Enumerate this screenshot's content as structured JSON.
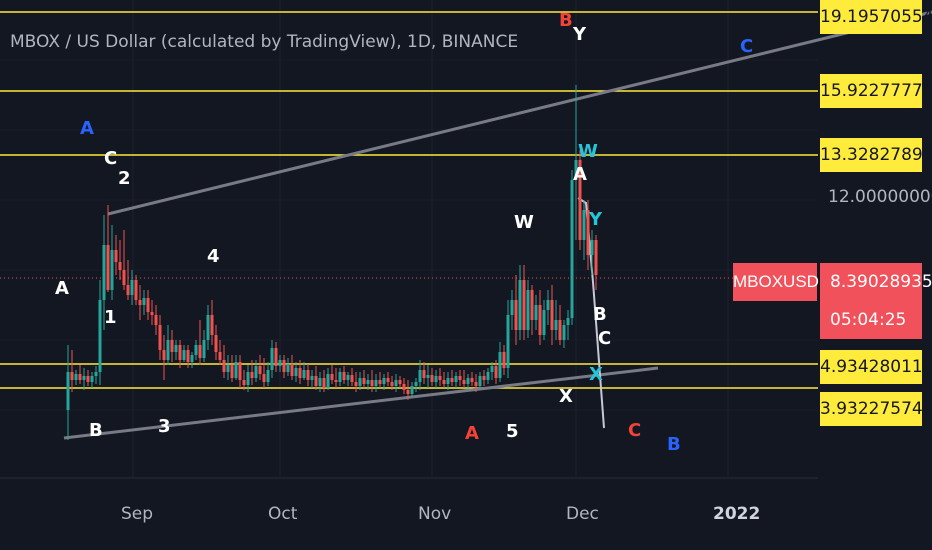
{
  "chart_data": {
    "type": "candlestick",
    "title": "MBOX / US Dollar (calculated by TradingView), 1D, BINANCE",
    "symbol": "MBOXUSD",
    "last_price": "8.39028935",
    "countdown": "05:04:25",
    "price_axis": {
      "levels": [
        "19.19570554",
        "15.92277775",
        "13.32827896",
        "4.93428011",
        "3.93227574"
      ],
      "tick": "12.00000000"
    },
    "x_ticks": [
      "Sep",
      "Oct",
      "Nov",
      "Dec",
      "2022"
    ],
    "horizontal_levels": [
      19.19570554,
      15.92277775,
      13.32827896,
      4.93428011,
      3.93227574
    ],
    "last_price_value": 8.39028935,
    "colors": {
      "up": "#26a69a",
      "down": "#ef5350",
      "level": "#ffeb3b",
      "trendline": "#787b86",
      "background": "#131722"
    },
    "wave_labels": [
      {
        "text": "A",
        "color": "#2962ff"
      },
      {
        "text": "C",
        "color": "#ffffff"
      },
      {
        "text": "2",
        "color": "#ffffff"
      },
      {
        "text": "4",
        "color": "#ffffff"
      },
      {
        "text": "A",
        "color": "#ffffff"
      },
      {
        "text": "1",
        "color": "#ffffff"
      },
      {
        "text": "B",
        "color": "#ffffff"
      },
      {
        "text": "3",
        "color": "#ffffff"
      },
      {
        "text": "A",
        "color": "#f44336"
      },
      {
        "text": "5",
        "color": "#ffffff"
      },
      {
        "text": "W",
        "color": "#ffffff"
      },
      {
        "text": "B",
        "color": "#f44336"
      },
      {
        "text": "Y",
        "color": "#ffffff"
      },
      {
        "text": "C",
        "color": "#2962ff"
      },
      {
        "text": "W",
        "color": "#26c6da"
      },
      {
        "text": "A",
        "color": "#ffffff"
      },
      {
        "text": "Y",
        "color": "#26c6da"
      },
      {
        "text": "B",
        "color": "#ffffff"
      },
      {
        "text": "C",
        "color": "#ffffff"
      },
      {
        "text": "X",
        "color": "#26c6da"
      },
      {
        "text": "X",
        "color": "#ffffff"
      },
      {
        "text": "C",
        "color": "#f44336"
      },
      {
        "text": "B",
        "color": "#2962ff"
      }
    ]
  }
}
